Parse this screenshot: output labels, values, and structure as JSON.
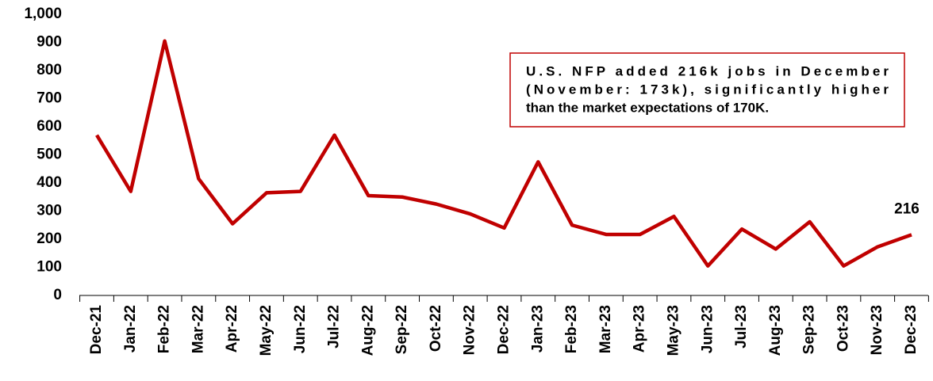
{
  "chart_data": {
    "type": "line",
    "categories": [
      "Dec-21",
      "Jan-22",
      "Feb-22",
      "Mar-22",
      "Apr-22",
      "May-22",
      "Jun-22",
      "Jul-22",
      "Aug-22",
      "Sep-22",
      "Oct-22",
      "Nov-22",
      "Dec-22",
      "Jan-23",
      "Feb-23",
      "Mar-23",
      "Apr-23",
      "May-23",
      "Jun-23",
      "Jul-23",
      "Aug-23",
      "Sep-23",
      "Oct-23",
      "Nov-23",
      "Dec-23"
    ],
    "values": [
      570,
      370,
      905,
      415,
      255,
      365,
      370,
      570,
      355,
      350,
      325,
      290,
      240,
      475,
      250,
      217,
      217,
      281,
      105,
      236,
      165,
      262,
      105,
      173,
      216
    ],
    "color": "#c00000",
    "ylim": [
      0,
      1000
    ],
    "yticks": [
      0,
      100,
      200,
      300,
      400,
      500,
      600,
      700,
      800,
      900,
      {
        "value": 1000,
        "label": "1,000"
      }
    ],
    "annotation": [
      "U.S. NFP added 216k jobs in December",
      "(November: 173k), significantly higher",
      "than the market expectations of 170K."
    ]
  }
}
